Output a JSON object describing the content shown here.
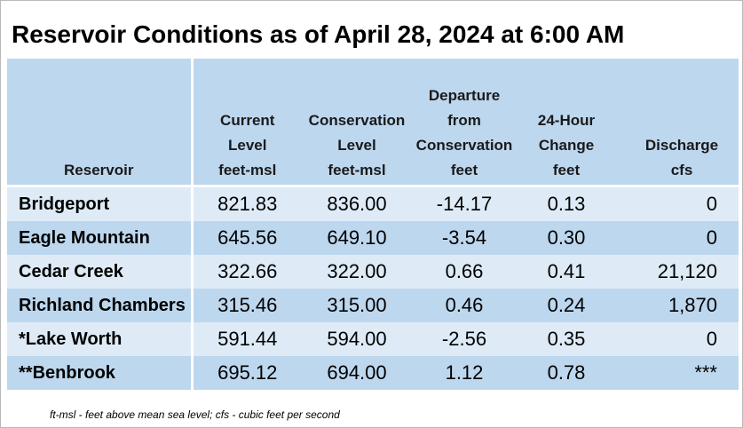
{
  "title": "Reservoir Conditions as of April 28, 2024 at 6:00 AM",
  "headers": {
    "reservoir": [
      "Reservoir"
    ],
    "current_level": [
      "Current",
      "Level",
      "feet-msl"
    ],
    "conservation_level": [
      "Conservation",
      "Level",
      "feet-msl"
    ],
    "departure": [
      "Departure",
      "from",
      "Conservation",
      "feet"
    ],
    "change_24h": [
      "24-Hour",
      "Change",
      "feet"
    ],
    "discharge": [
      "Discharge",
      "cfs"
    ]
  },
  "rows": [
    {
      "reservoir": "Bridgeport",
      "current_level": "821.83",
      "conservation_level": "836.00",
      "departure": "-14.17",
      "change_24h": "0.13",
      "discharge": "0"
    },
    {
      "reservoir": "Eagle Mountain",
      "current_level": "645.56",
      "conservation_level": "649.10",
      "departure": "-3.54",
      "change_24h": "0.30",
      "discharge": "0"
    },
    {
      "reservoir": "Cedar Creek",
      "current_level": "322.66",
      "conservation_level": "322.00",
      "departure": "0.66",
      "change_24h": "0.41",
      "discharge": "21,120"
    },
    {
      "reservoir": "Richland Chambers",
      "current_level": "315.46",
      "conservation_level": "315.00",
      "departure": "0.46",
      "change_24h": "0.24",
      "discharge": "1,870"
    },
    {
      "reservoir": "*Lake Worth",
      "current_level": "591.44",
      "conservation_level": "594.00",
      "departure": "-2.56",
      "change_24h": "0.35",
      "discharge": "0"
    },
    {
      "reservoir": "**Benbrook",
      "current_level": "695.12",
      "conservation_level": "694.00",
      "departure": "1.12",
      "change_24h": "0.78",
      "discharge": "***"
    }
  ],
  "footnote": "ft-msl - feet above mean sea level; cfs - cubic feet per second",
  "colors": {
    "header_bg": "#bdd7ee",
    "row_light": "#deebf7",
    "row_dark": "#bdd7ee"
  }
}
